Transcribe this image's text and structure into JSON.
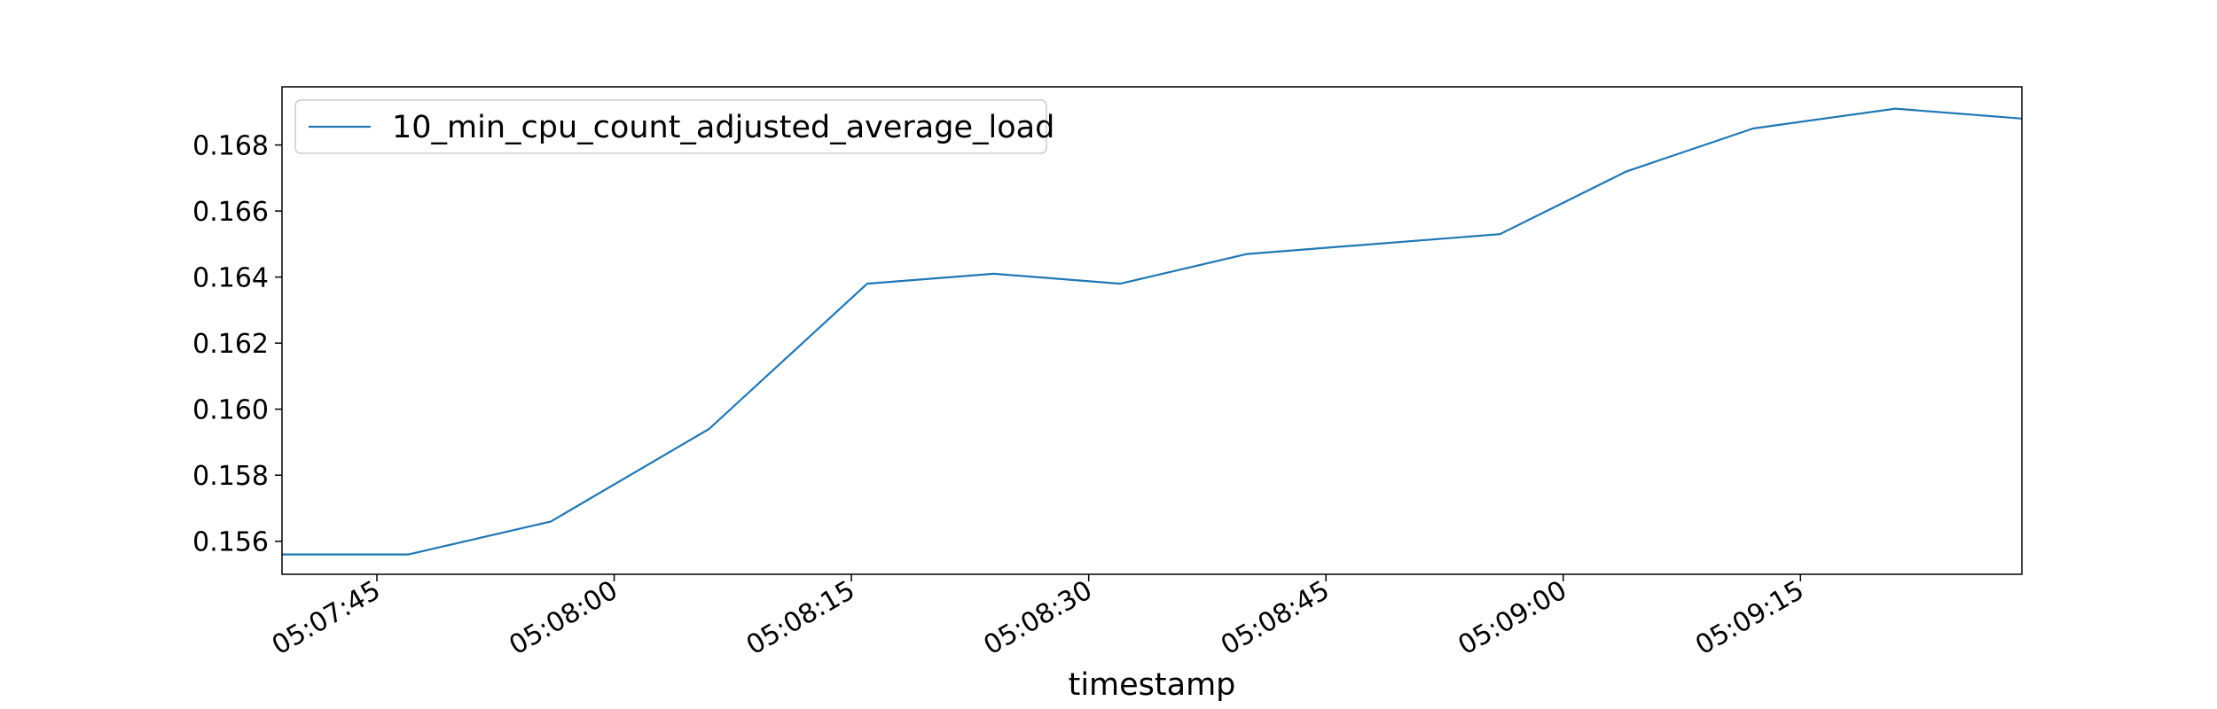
{
  "chart_data": {
    "type": "line",
    "title": "",
    "xlabel": "timestamp",
    "ylabel": "",
    "x_tick_labels": [
      "05:07:45",
      "05:08:00",
      "05:08:15",
      "05:08:30",
      "05:08:45",
      "05:09:00",
      "05:09:15"
    ],
    "y_tick_labels": [
      "0.156",
      "0.158",
      "0.160",
      "0.162",
      "0.164",
      "0.166",
      "0.168"
    ],
    "xlim": [
      "05:07:39",
      "05:09:29"
    ],
    "ylim": [
      0.155,
      0.16976
    ],
    "legend_position": "top-left",
    "grid": false,
    "series": [
      {
        "name": "10_min_cpu_count_adjusted_average_load",
        "color": "#1f77b4",
        "x": [
          "05:07:39",
          "05:07:47",
          "05:07:56",
          "05:08:06",
          "05:08:16",
          "05:08:24",
          "05:08:32",
          "05:08:40",
          "05:08:56",
          "05:09:04",
          "05:09:12",
          "05:09:21",
          "05:09:29"
        ],
        "y": [
          0.1556,
          0.1556,
          0.1566,
          0.1594,
          0.1638,
          0.1641,
          0.1638,
          0.1647,
          0.1653,
          0.1672,
          0.1685,
          0.1691,
          0.1688
        ]
      }
    ]
  }
}
